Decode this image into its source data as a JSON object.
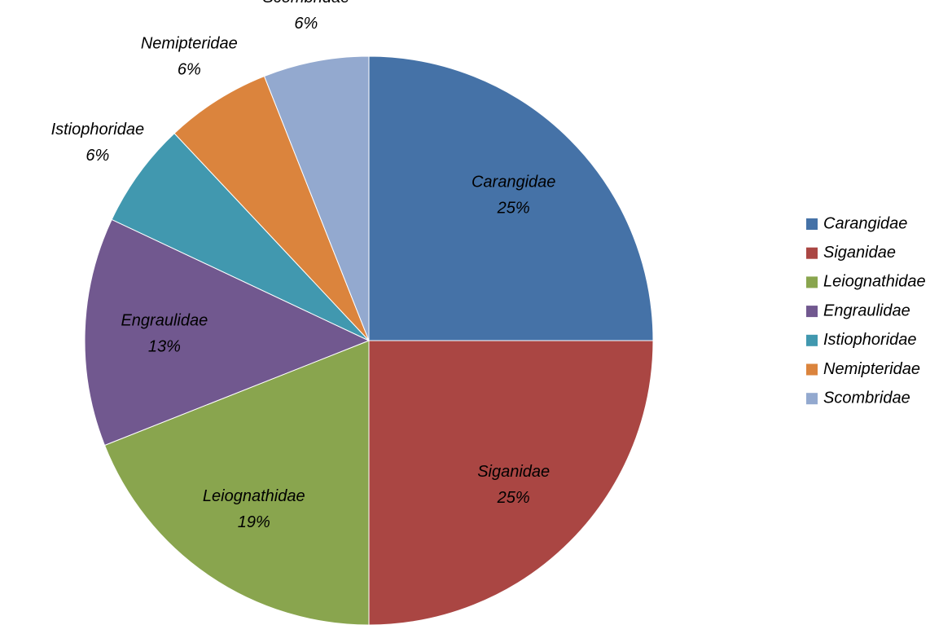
{
  "chart_data": {
    "type": "pie",
    "categories": [
      "Carangidae",
      "Siganidae",
      "Leiognathidae",
      "Engraulidae",
      "Istiophoridae",
      "Nemipteridae",
      "Scombridae"
    ],
    "values": [
      25,
      25,
      19,
      13,
      6,
      6,
      6
    ],
    "value_labels": [
      "25%",
      "25%",
      "19%",
      "13%",
      "6%",
      "6%",
      "6%"
    ],
    "colors": [
      "#4572a7",
      "#aa4643",
      "#89a54e",
      "#71588f",
      "#4198af",
      "#db843d",
      "#93a9cf"
    ],
    "legend": "right"
  }
}
